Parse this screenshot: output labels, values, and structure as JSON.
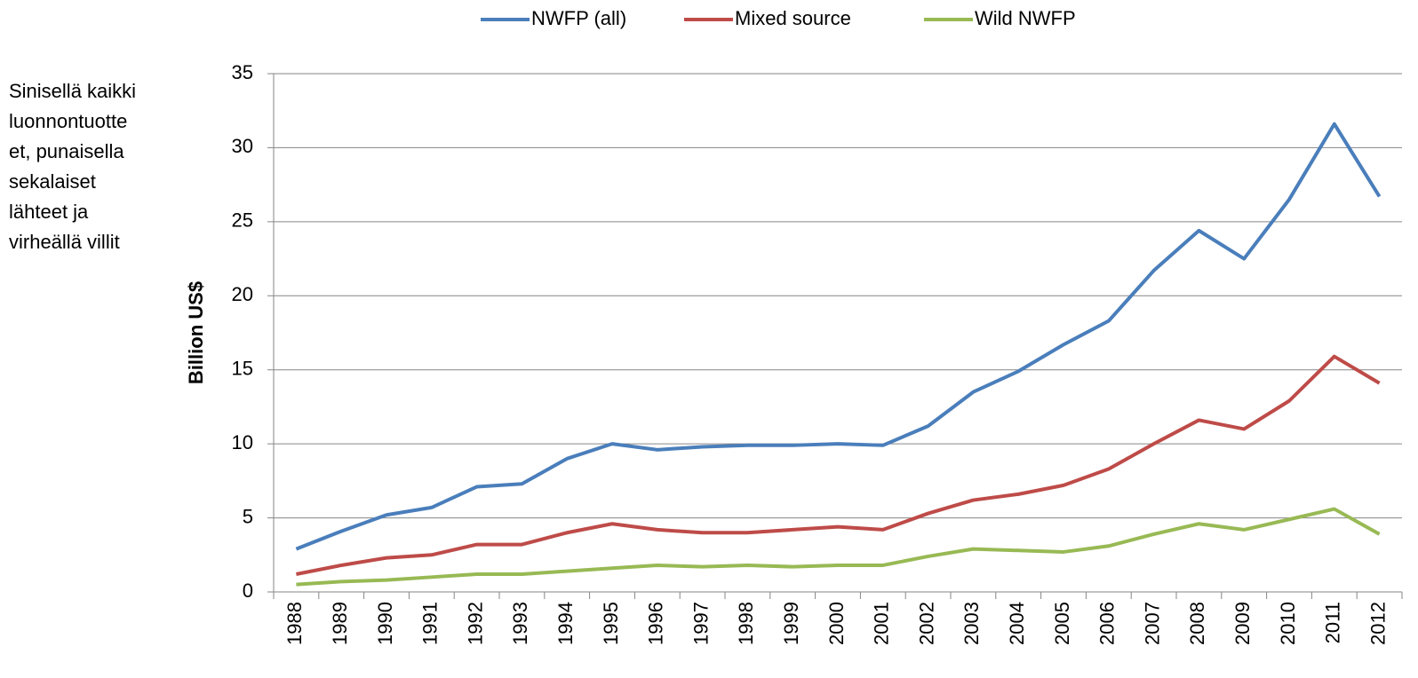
{
  "chart_data": {
    "type": "line",
    "y_label": "Billion US$",
    "annotation": [
      "Sinisellä kaikki",
      "luonnontuotte",
      "et, punaisella",
      "sekalaiset",
      "lähteet ja",
      "virheällä villit"
    ],
    "categories": [
      "1988",
      "1989",
      "1990",
      "1991",
      "1992",
      "1993",
      "1994",
      "1995",
      "1996",
      "1997",
      "1998",
      "1999",
      "2000",
      "2001",
      "2002",
      "2003",
      "2004",
      "2005",
      "2006",
      "2007",
      "2008",
      "2009",
      "2010",
      "2011",
      "2012"
    ],
    "series": [
      {
        "name": "NWFP (all)",
        "color": "#4a7ebb",
        "values": [
          2.9,
          4.1,
          5.2,
          5.7,
          7.1,
          7.3,
          9.0,
          10.0,
          9.6,
          9.8,
          9.9,
          9.9,
          10.0,
          9.9,
          11.2,
          13.5,
          14.9,
          16.7,
          18.3,
          21.7,
          24.4,
          22.5,
          26.5,
          31.6,
          26.7
        ]
      },
      {
        "name": "Mixed source",
        "color": "#be4b48",
        "values": [
          1.2,
          1.8,
          2.3,
          2.5,
          3.2,
          3.2,
          4.0,
          4.6,
          4.2,
          4.0,
          4.0,
          4.2,
          4.4,
          4.2,
          5.3,
          6.2,
          6.6,
          7.2,
          8.3,
          10.0,
          11.6,
          11.0,
          12.9,
          15.9,
          14.1
        ]
      },
      {
        "name": "Wild NWFP",
        "color": "#98b954",
        "values": [
          0.5,
          0.7,
          0.8,
          1.0,
          1.2,
          1.2,
          1.4,
          1.6,
          1.8,
          1.7,
          1.8,
          1.7,
          1.8,
          1.8,
          2.4,
          2.9,
          2.8,
          2.7,
          3.1,
          3.9,
          4.6,
          4.2,
          4.9,
          5.6,
          3.9
        ]
      }
    ],
    "ylim": [
      0,
      35
    ],
    "yticks": [
      0,
      5,
      10,
      15,
      20,
      25,
      30,
      35
    ],
    "grid": true,
    "legend": "top"
  }
}
